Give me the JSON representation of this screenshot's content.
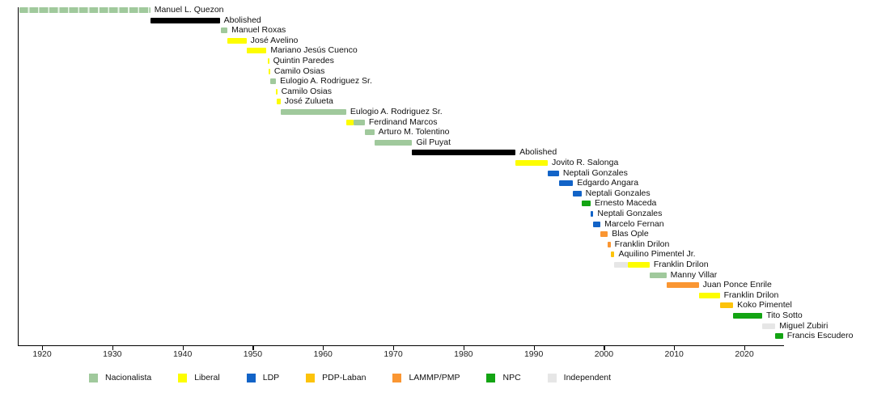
{
  "chart_data": {
    "type": "timeline",
    "description": "Term timeline of Senate Presidents with party-colored bars",
    "axis": {
      "start_year": 1916.54,
      "end_year": 2025.6,
      "tick_years": [
        1920,
        1930,
        1940,
        1950,
        1960,
        1970,
        1980,
        1990,
        2000,
        2010,
        2020
      ],
      "tick_labels": [
        "1920",
        "1930",
        "1940",
        "1950",
        "1960",
        "1970",
        "1980",
        "1990",
        "2000",
        "2010",
        "2020"
      ]
    },
    "party_colors": {
      "Nacionalista": "#a0c99c",
      "Liberal": "#fdfd00",
      "LDP": "#1263c7",
      "PDP-Laban": "#fcc30b",
      "LAMMP/PMP": "#fa9632",
      "NPC": "#13a413",
      "Independent": "#e6e6e6",
      "Abolished": "#000000"
    },
    "stripe_separator_color": "#e9f3e8",
    "legend": [
      {
        "label": "Nacionalista",
        "color": "#a0c99c"
      },
      {
        "label": "Liberal",
        "color": "#fdfd00"
      },
      {
        "label": "LDP",
        "color": "#1263c7"
      },
      {
        "label": "PDP-Laban",
        "color": "#fcc30b"
      },
      {
        "label": "LAMMP/PMP",
        "color": "#fa9632"
      },
      {
        "label": "NPC",
        "color": "#13a413"
      },
      {
        "label": "Independent",
        "color": "#e6e6e6"
      }
    ],
    "bars": [
      {
        "label": "Manuel L. Quezon",
        "segments": [
          {
            "party": "Nacionalista",
            "start": 1916.8,
            "end": 1935.4,
            "striped": true
          }
        ]
      },
      {
        "label": "Abolished",
        "segments": [
          {
            "party": "Abolished",
            "start": 1935.4,
            "end": 1945.3
          }
        ]
      },
      {
        "label": "Manuel Roxas",
        "segments": [
          {
            "party": "Nacionalista",
            "start": 1945.4,
            "end": 1946.4
          }
        ]
      },
      {
        "label": "José Avelino",
        "segments": [
          {
            "party": "Liberal",
            "start": 1946.4,
            "end": 1949.1
          }
        ]
      },
      {
        "label": "Mariano Jesús Cuenco",
        "segments": [
          {
            "party": "Liberal",
            "start": 1949.1,
            "end": 1951.95
          }
        ]
      },
      {
        "label": "Quintin Paredes",
        "segments": [
          {
            "party": "Liberal",
            "start": 1952.15,
            "end": 1952.3
          }
        ]
      },
      {
        "label": "Camilo Osias",
        "segments": [
          {
            "party": "Liberal",
            "start": 1952.3,
            "end": 1952.45
          }
        ]
      },
      {
        "label": "Eulogio A. Rodriguez Sr.",
        "segments": [
          {
            "party": "Nacionalista",
            "start": 1952.45,
            "end": 1953.3
          }
        ]
      },
      {
        "label": "Camilo Osias",
        "segments": [
          {
            "party": "Liberal",
            "start": 1953.3,
            "end": 1953.45
          }
        ]
      },
      {
        "label": "José Zulueta",
        "segments": [
          {
            "party": "Liberal",
            "start": 1953.45,
            "end": 1953.95
          }
        ]
      },
      {
        "label": "Eulogio A. Rodriguez Sr.",
        "segments": [
          {
            "party": "Nacionalista",
            "start": 1953.95,
            "end": 1963.3
          }
        ]
      },
      {
        "label": "Ferdinand Marcos",
        "segments": [
          {
            "party": "Liberal",
            "start": 1963.3,
            "end": 1964.4
          },
          {
            "party": "Nacionalista",
            "start": 1964.4,
            "end": 1965.95
          }
        ]
      },
      {
        "label": "Arturo M. Tolentino",
        "segments": [
          {
            "party": "Nacionalista",
            "start": 1966.0,
            "end": 1967.3
          }
        ]
      },
      {
        "label": "Gil Puyat",
        "segments": [
          {
            "party": "Nacionalista",
            "start": 1967.3,
            "end": 1972.7
          }
        ]
      },
      {
        "label": "Abolished",
        "segments": [
          {
            "party": "Abolished",
            "start": 1972.7,
            "end": 1987.4
          }
        ]
      },
      {
        "label": "Jovito R. Salonga",
        "segments": [
          {
            "party": "Liberal",
            "start": 1987.4,
            "end": 1992.0
          }
        ]
      },
      {
        "label": "Neptali Gonzales",
        "segments": [
          {
            "party": "LDP",
            "start": 1992.0,
            "end": 1993.6
          }
        ]
      },
      {
        "label": "Edgardo Angara",
        "segments": [
          {
            "party": "LDP",
            "start": 1993.6,
            "end": 1995.6
          }
        ]
      },
      {
        "label": "Neptali Gonzales",
        "segments": [
          {
            "party": "LDP",
            "start": 1995.6,
            "end": 1996.8
          }
        ]
      },
      {
        "label": "Ernesto Maceda",
        "segments": [
          {
            "party": "NPC",
            "start": 1996.8,
            "end": 1998.1
          }
        ]
      },
      {
        "label": "Neptali Gonzales",
        "segments": [
          {
            "party": "LDP",
            "start": 1998.1,
            "end": 1998.5
          }
        ]
      },
      {
        "label": "Marcelo Fernan",
        "segments": [
          {
            "party": "LDP",
            "start": 1998.5,
            "end": 1999.5
          }
        ]
      },
      {
        "label": "Blas Ople",
        "segments": [
          {
            "party": "LAMMP/PMP",
            "start": 1999.5,
            "end": 2000.55
          }
        ]
      },
      {
        "label": "Franklin Drilon",
        "segments": [
          {
            "party": "LAMMP/PMP",
            "start": 2000.55,
            "end": 2000.95
          }
        ]
      },
      {
        "label": "Aquilino Pimentel Jr.",
        "segments": [
          {
            "party": "PDP-Laban",
            "start": 2000.95,
            "end": 2001.5
          }
        ]
      },
      {
        "label": "Franklin Drilon",
        "segments": [
          {
            "party": "Independent",
            "start": 2001.5,
            "end": 2003.4
          },
          {
            "party": "Liberal",
            "start": 2003.4,
            "end": 2006.5
          }
        ]
      },
      {
        "label": "Manny Villar",
        "segments": [
          {
            "party": "Nacionalista",
            "start": 2006.5,
            "end": 2008.9
          }
        ]
      },
      {
        "label": "Juan Ponce Enrile",
        "segments": [
          {
            "party": "LAMMP/PMP",
            "start": 2008.9,
            "end": 2013.5
          }
        ]
      },
      {
        "label": "Franklin Drilon",
        "segments": [
          {
            "party": "Liberal",
            "start": 2013.5,
            "end": 2016.5
          }
        ]
      },
      {
        "label": "Koko Pimentel",
        "segments": [
          {
            "party": "PDP-Laban",
            "start": 2016.5,
            "end": 2018.4
          }
        ]
      },
      {
        "label": "Tito Sotto",
        "segments": [
          {
            "party": "NPC",
            "start": 2018.4,
            "end": 2022.55
          }
        ]
      },
      {
        "label": "Miguel Zubiri",
        "segments": [
          {
            "party": "Independent",
            "start": 2022.55,
            "end": 2024.4
          }
        ]
      },
      {
        "label": "Francis Escudero",
        "segments": [
          {
            "party": "NPC",
            "start": 2024.4,
            "end": 2025.5
          }
        ]
      }
    ]
  }
}
